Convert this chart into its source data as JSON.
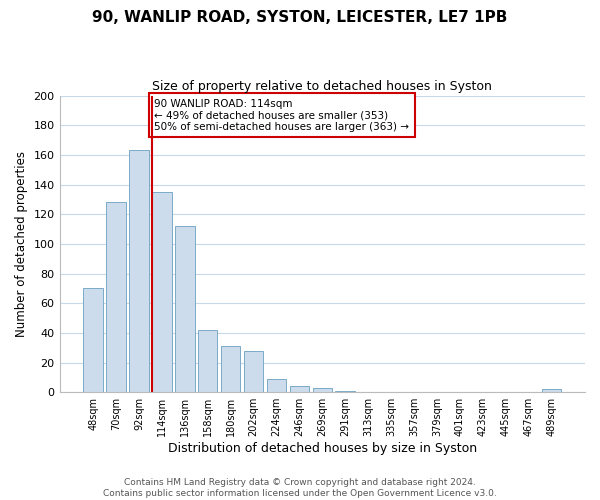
{
  "title": "90, WANLIP ROAD, SYSTON, LEICESTER, LE7 1PB",
  "subtitle": "Size of property relative to detached houses in Syston",
  "xlabel": "Distribution of detached houses by size in Syston",
  "ylabel": "Number of detached properties",
  "bar_labels": [
    "48sqm",
    "70sqm",
    "92sqm",
    "114sqm",
    "136sqm",
    "158sqm",
    "180sqm",
    "202sqm",
    "224sqm",
    "246sqm",
    "269sqm",
    "291sqm",
    "313sqm",
    "335sqm",
    "357sqm",
    "379sqm",
    "401sqm",
    "423sqm",
    "445sqm",
    "467sqm",
    "489sqm"
  ],
  "bar_values": [
    70,
    128,
    163,
    135,
    112,
    42,
    31,
    28,
    9,
    4,
    3,
    1,
    0,
    0,
    0,
    0,
    0,
    0,
    0,
    0,
    2
  ],
  "bar_color": "#ccdcec",
  "bar_edge_color": "#7aaac8",
  "vline_color": "#cc0000",
  "ylim": [
    0,
    200
  ],
  "yticks": [
    0,
    20,
    40,
    60,
    80,
    100,
    120,
    140,
    160,
    180,
    200
  ],
  "annotation_title": "90 WANLIP ROAD: 114sqm",
  "annotation_line1": "← 49% of detached houses are smaller (353)",
  "annotation_line2": "50% of semi-detached houses are larger (363) →",
  "annotation_box_color": "#ffffff",
  "annotation_border_color": "#cc0000",
  "footer_line1": "Contains HM Land Registry data © Crown copyright and database right 2024.",
  "footer_line2": "Contains public sector information licensed under the Open Government Licence v3.0.",
  "background_color": "#ffffff",
  "grid_color": "#c8d8e8"
}
